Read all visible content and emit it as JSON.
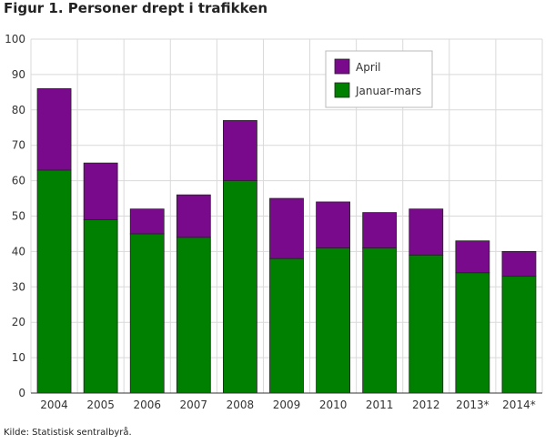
{
  "chart_data": {
    "type": "bar",
    "stacked": true,
    "title": "Figur 1. Personer drept i trafikken",
    "xlabel": "",
    "ylabel": "",
    "ylim": [
      0,
      100
    ],
    "yticks": [
      0,
      10,
      20,
      30,
      40,
      50,
      60,
      70,
      80,
      90,
      100
    ],
    "categories": [
      "2004",
      "2005",
      "2006",
      "2007",
      "2008",
      "2009",
      "2010",
      "2011",
      "2012",
      "2013*",
      "2014*"
    ],
    "series": [
      {
        "name": "Januar-mars",
        "color": "#008000",
        "values": [
          63,
          49,
          45,
          44,
          60,
          38,
          41,
          41,
          39,
          34,
          33
        ]
      },
      {
        "name": "April",
        "color": "#7a0a8c",
        "values": [
          23,
          16,
          7,
          12,
          17,
          17,
          13,
          10,
          13,
          9,
          7
        ]
      }
    ],
    "legend": {
      "placement": "top-right",
      "order": [
        "April",
        "Januar-mars"
      ]
    },
    "grid": true
  },
  "source": "Kilde: Statistisk sentralbyrå."
}
